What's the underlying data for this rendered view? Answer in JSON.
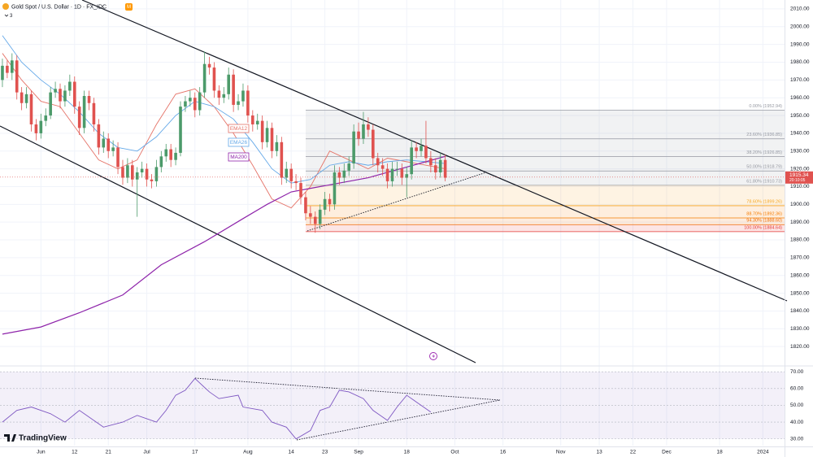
{
  "header": {
    "symbol": "Gold Spot / U.S. Dollar · 1D · FX_IDC",
    "badge": "M",
    "indicator_count": "3",
    "brand": "TradingView"
  },
  "chart_data": [
    {
      "type": "candlestick",
      "up_color": "#4c9a6a",
      "down_color": "#e0524f",
      "xlim": [
        -0.5,
        162.5
      ],
      "ylim": [
        1810,
        2015
      ],
      "grid": true,
      "ohlc": [
        [
          1970,
          1982,
          1966,
          1978
        ],
        [
          1978,
          1981,
          1971,
          1974
        ],
        [
          1974,
          1985,
          1970,
          1981
        ],
        [
          1981,
          1984,
          1959,
          1963
        ],
        [
          1963,
          1966,
          1953,
          1957
        ],
        [
          1957,
          1966,
          1954,
          1962
        ],
        [
          1962,
          1964,
          1941,
          1945
        ],
        [
          1945,
          1948,
          1936,
          1940
        ],
        [
          1940,
          1951,
          1937,
          1947
        ],
        [
          1947,
          1954,
          1944,
          1950
        ],
        [
          1950,
          1966,
          1948,
          1963
        ],
        [
          1963,
          1969,
          1960,
          1965
        ],
        [
          1965,
          1968,
          1954,
          1958
        ],
        [
          1958,
          1967,
          1955,
          1964
        ],
        [
          1964,
          1973,
          1961,
          1969
        ],
        [
          1969,
          1972,
          1951,
          1955
        ],
        [
          1955,
          1958,
          1939,
          1943
        ],
        [
          1943,
          1964,
          1940,
          1961
        ],
        [
          1961,
          1964,
          1953,
          1957
        ],
        [
          1957,
          1960,
          1941,
          1945
        ],
        [
          1945,
          1948,
          1928,
          1932
        ],
        [
          1932,
          1941,
          1929,
          1937
        ],
        [
          1937,
          1940,
          1926,
          1930
        ],
        [
          1930,
          1936,
          1927,
          1932
        ],
        [
          1932,
          1935,
          1917,
          1921
        ],
        [
          1921,
          1925,
          1911,
          1915
        ],
        [
          1915,
          1926,
          1912,
          1922
        ],
        [
          1922,
          1925,
          1910,
          1914
        ],
        [
          1914,
          1921,
          1893,
          1918
        ],
        [
          1918,
          1924,
          1915,
          1920
        ],
        [
          1920,
          1923,
          1910,
          1914
        ],
        [
          1914,
          1917,
          1909,
          1913
        ],
        [
          1913,
          1925,
          1910,
          1921
        ],
        [
          1921,
          1930,
          1918,
          1927
        ],
        [
          1927,
          1934,
          1924,
          1931
        ],
        [
          1931,
          1934,
          1921,
          1925
        ],
        [
          1925,
          1932,
          1922,
          1929
        ],
        [
          1929,
          1958,
          1927,
          1955
        ],
        [
          1955,
          1961,
          1952,
          1958
        ],
        [
          1958,
          1964,
          1955,
          1960
        ],
        [
          1960,
          1963,
          1949,
          1953
        ],
        [
          1953,
          1966,
          1950,
          1963
        ],
        [
          1963,
          1986,
          1960,
          1979
        ],
        [
          1979,
          1983,
          1973,
          1977
        ],
        [
          1977,
          1980,
          1960,
          1964
        ],
        [
          1964,
          1967,
          1956,
          1960
        ],
        [
          1960,
          1966,
          1957,
          1962
        ],
        [
          1962,
          1977,
          1959,
          1973
        ],
        [
          1973,
          1976,
          1952,
          1956
        ],
        [
          1956,
          1962,
          1953,
          1958
        ],
        [
          1958,
          1968,
          1955,
          1964
        ],
        [
          1964,
          1967,
          1946,
          1950
        ],
        [
          1950,
          1953,
          1941,
          1945
        ],
        [
          1945,
          1951,
          1942,
          1947
        ],
        [
          1947,
          1950,
          1931,
          1935
        ],
        [
          1935,
          1947,
          1932,
          1943
        ],
        [
          1943,
          1946,
          1926,
          1930
        ],
        [
          1930,
          1939,
          1927,
          1935
        ],
        [
          1935,
          1938,
          1911,
          1915
        ],
        [
          1915,
          1924,
          1912,
          1920
        ],
        [
          1920,
          1923,
          1909,
          1913
        ],
        [
          1913,
          1917,
          1908,
          1912
        ],
        [
          1912,
          1915,
          1900,
          1904
        ],
        [
          1904,
          1907,
          1891,
          1895
        ],
        [
          1895,
          1899,
          1889,
          1893
        ],
        [
          1893,
          1896,
          1884,
          1889
        ],
        [
          1889,
          1900,
          1886,
          1897
        ],
        [
          1897,
          1907,
          1894,
          1903
        ],
        [
          1903,
          1906,
          1896,
          1900
        ],
        [
          1900,
          1922,
          1897,
          1918
        ],
        [
          1918,
          1921,
          1911,
          1915
        ],
        [
          1915,
          1923,
          1912,
          1919
        ],
        [
          1919,
          1927,
          1916,
          1923
        ],
        [
          1923,
          1945,
          1920,
          1941
        ],
        [
          1941,
          1946,
          1933,
          1937
        ],
        [
          1937,
          1952,
          1934,
          1945
        ],
        [
          1945,
          1949,
          1938,
          1942
        ],
        [
          1942,
          1945,
          1922,
          1926
        ],
        [
          1926,
          1929,
          1918,
          1922
        ],
        [
          1922,
          1926,
          1916,
          1920
        ],
        [
          1920,
          1923,
          1909,
          1913
        ],
        [
          1913,
          1924,
          1910,
          1920
        ],
        [
          1920,
          1924,
          1916,
          1920
        ],
        [
          1920,
          1923,
          1911,
          1915
        ],
        [
          1915,
          1921,
          1904,
          1917
        ],
        [
          1917,
          1936,
          1914,
          1932
        ],
        [
          1932,
          1935,
          1926,
          1930
        ],
        [
          1930,
          1937,
          1927,
          1933
        ],
        [
          1933,
          1947,
          1923,
          1926
        ],
        [
          1926,
          1930,
          1918,
          1922
        ],
        [
          1922,
          1926,
          1914,
          1918
        ],
        [
          1918,
          1929,
          1915,
          1925
        ],
        [
          1925,
          1928,
          1913,
          1915
        ]
      ],
      "overlays": [
        {
          "name": "EMA12",
          "color": "#e57368",
          "x": [
            0,
            4,
            8,
            12,
            16,
            20,
            24,
            28,
            32,
            36,
            40,
            44,
            48,
            52,
            56,
            60,
            64,
            68,
            72,
            76,
            80,
            84,
            88,
            92
          ],
          "values": [
            1985,
            1970,
            1958,
            1955,
            1940,
            1925,
            1920,
            1925,
            1945,
            1962,
            1965,
            1955,
            1940,
            1922,
            1903,
            1898,
            1910,
            1930,
            1925,
            1920,
            1926,
            1924,
            1922,
            1920
          ]
        },
        {
          "name": "EMA26",
          "color": "#64a8e8",
          "x": [
            0,
            4,
            8,
            12,
            16,
            20,
            24,
            28,
            32,
            36,
            40,
            44,
            48,
            52,
            56,
            60,
            64,
            68,
            72,
            76,
            80,
            84,
            88,
            92
          ],
          "values": [
            1995,
            1980,
            1970,
            1962,
            1952,
            1940,
            1932,
            1930,
            1938,
            1950,
            1958,
            1955,
            1948,
            1935,
            1920,
            1912,
            1914,
            1922,
            1924,
            1922,
            1924,
            1925,
            1924,
            1923
          ]
        },
        {
          "name": "MA200",
          "color": "#8e24aa",
          "x": [
            0,
            8,
            16,
            25,
            33,
            42,
            50,
            55,
            60,
            64,
            68,
            72,
            76,
            80,
            84,
            88,
            92
          ],
          "values": [
            1827,
            1831,
            1839,
            1849,
            1866,
            1879,
            1892,
            1900,
            1907,
            1909,
            1911,
            1913,
            1915,
            1918,
            1921,
            1924,
            1927
          ]
        }
      ],
      "fib_levels": [
        {
          "value": 1952.94,
          "label": "0.00% (1952.94)",
          "color": "#9598a1"
        },
        {
          "value": 1936.85,
          "label": "23.60% (1936.85)",
          "color": "#9598a1"
        },
        {
          "value": 1926.85,
          "label": "38.20% (1926.85)",
          "color": "#9598a1"
        },
        {
          "value": 1918.79,
          "label": "50.00% (1918.79)",
          "color": "#9598a1"
        },
        {
          "value": 1910.73,
          "label": "61.80% (1910.73)",
          "color": "#9598a1"
        },
        {
          "value": 1899.26,
          "label": "78.60% (1899.26)",
          "color": "#f5a623"
        },
        {
          "value": 1892.36,
          "label": "88.70% (1892.36)",
          "color": "#f57c00"
        },
        {
          "value": 1888.6,
          "label": "94.30% (1888.60)",
          "color": "#ef6c00"
        },
        {
          "value": 1884.64,
          "label": "100.00% (1884.64)",
          "color": "#e53935"
        }
      ],
      "last_price": 1915.34,
      "countdown": "20:10:05",
      "yticks": [
        {
          "value": 1820,
          "label": "1820.00"
        },
        {
          "value": 1830,
          "label": "1830.00"
        },
        {
          "value": 1840,
          "label": "1840.00"
        },
        {
          "value": 1850,
          "label": "1850.00"
        },
        {
          "value": 1860,
          "label": "1860.00"
        },
        {
          "value": 1870,
          "label": "1870.00"
        },
        {
          "value": 1880,
          "label": "1880.00"
        },
        {
          "value": 1890,
          "label": "1890.00"
        },
        {
          "value": 1900,
          "label": "1900.00"
        },
        {
          "value": 1910,
          "label": "1910.00"
        },
        {
          "value": 1920,
          "label": "1920.00"
        },
        {
          "value": 1930,
          "label": "1930.00"
        },
        {
          "value": 1940,
          "label": "1940.00"
        },
        {
          "value": 1950,
          "label": "1950.00"
        },
        {
          "value": 1960,
          "label": "1960.00"
        },
        {
          "value": 1970,
          "label": "1970.00"
        },
        {
          "value": 1980,
          "label": "1980.00"
        },
        {
          "value": 1990,
          "label": "1990.00"
        },
        {
          "value": 2000,
          "label": "2000.00"
        },
        {
          "value": 2010,
          "label": "2010.00"
        }
      ],
      "xticks": [
        {
          "value": 8,
          "label": "Jun"
        },
        {
          "value": 15,
          "label": "12"
        },
        {
          "value": 22,
          "label": "21"
        },
        {
          "value": 30,
          "label": "Jul"
        },
        {
          "value": 40,
          "label": "17"
        },
        {
          "value": 51,
          "label": "Aug"
        },
        {
          "value": 60,
          "label": "14"
        },
        {
          "value": 67,
          "label": "23"
        },
        {
          "value": 74,
          "label": "Sep"
        },
        {
          "value": 84,
          "label": "18"
        },
        {
          "value": 94,
          "label": "Oct"
        },
        {
          "value": 104,
          "label": "16"
        },
        {
          "value": 116,
          "label": "Nov"
        },
        {
          "value": 124,
          "label": "13"
        },
        {
          "value": 131,
          "label": "22"
        },
        {
          "value": 138,
          "label": "Dec"
        },
        {
          "value": 149,
          "label": "18"
        },
        {
          "value": 158,
          "label": "2024"
        }
      ]
    },
    {
      "type": "line",
      "color": "#7e57c2",
      "x": [
        0,
        3,
        6,
        10,
        13,
        16,
        21,
        25,
        28,
        32,
        34,
        36,
        38,
        40,
        43,
        45,
        49,
        50,
        54,
        56,
        59,
        61,
        64,
        66,
        68,
        70,
        72,
        75,
        77,
        80,
        82,
        84,
        86,
        87,
        89
      ],
      "values": [
        40,
        47,
        49,
        45,
        40,
        47,
        37,
        40,
        44,
        40,
        47,
        56,
        59,
        66,
        58,
        54,
        56,
        49,
        47,
        40,
        37,
        30,
        35,
        47,
        49,
        59,
        58,
        54,
        47,
        41,
        49,
        56,
        52,
        50,
        46
      ],
      "ylim": [
        26,
        72.5
      ],
      "yticks": [
        {
          "value": 30,
          "label": "30.00"
        },
        {
          "value": 40,
          "label": "40.00"
        },
        {
          "value": 50,
          "label": "50.00"
        },
        {
          "value": 60,
          "label": "60.00"
        },
        {
          "value": 70,
          "label": "70.00"
        }
      ]
    }
  ]
}
